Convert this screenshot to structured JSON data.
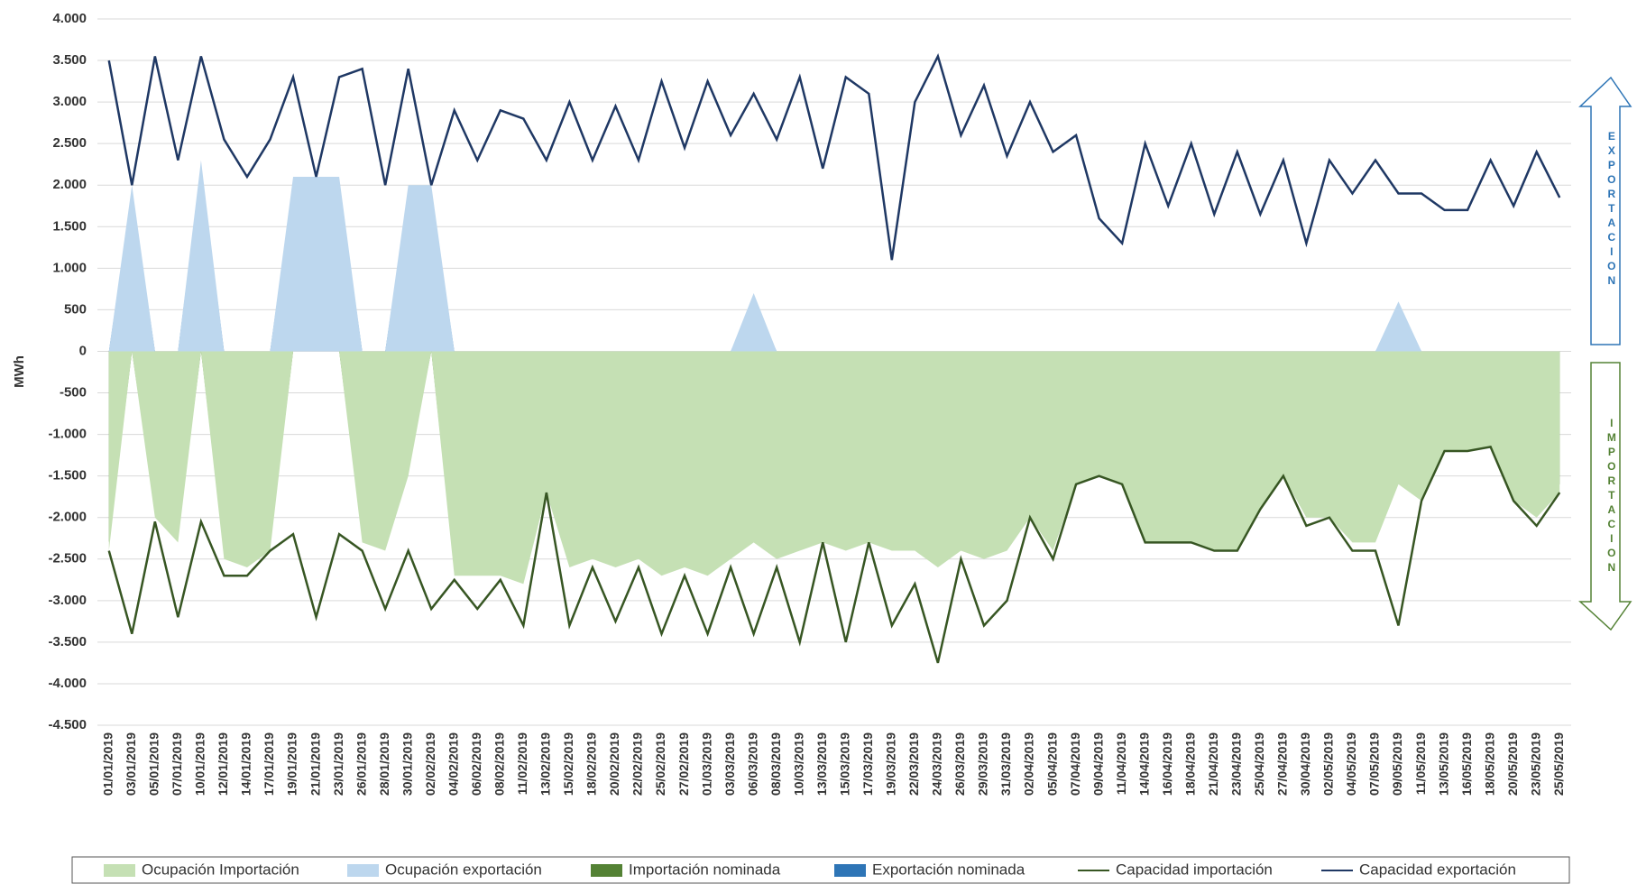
{
  "chart_data": {
    "type": "area-line",
    "y_label": "MWh",
    "annotations": [
      "EXPORTACION",
      "IMPORTACION"
    ],
    "categories": [
      "01/01/2019",
      "03/01/2019",
      "05/01/2019",
      "07/01/2019",
      "10/01/2019",
      "12/01/2019",
      "14/01/2019",
      "17/01/2019",
      "19/01/2019",
      "21/01/2019",
      "23/01/2019",
      "26/01/2019",
      "28/01/2019",
      "30/01/2019",
      "02/02/2019",
      "04/02/2019",
      "06/02/2019",
      "08/02/2019",
      "11/02/2019",
      "13/02/2019",
      "15/02/2019",
      "18/02/2019",
      "20/02/2019",
      "22/02/2019",
      "25/02/2019",
      "27/02/2019",
      "01/03/2019",
      "03/03/2019",
      "06/03/2019",
      "08/03/2019",
      "10/03/2019",
      "13/03/2019",
      "15/03/2019",
      "17/03/2019",
      "19/03/2019",
      "22/03/2019",
      "24/03/2019",
      "26/03/2019",
      "29/03/2019",
      "31/03/2019",
      "02/04/2019",
      "05/04/2019",
      "07/04/2019",
      "09/04/2019",
      "11/04/2019",
      "14/04/2019",
      "16/04/2019",
      "18/04/2019",
      "21/04/2019",
      "23/04/2019",
      "25/04/2019",
      "27/04/2019",
      "30/04/2019",
      "02/05/2019",
      "04/05/2019",
      "07/05/2019",
      "09/05/2019",
      "11/05/2019",
      "13/05/2019",
      "16/05/2019",
      "18/05/2019",
      "20/05/2019",
      "23/05/2019",
      "25/05/2019"
    ],
    "series": [
      {
        "name": "Importación nominada",
        "style": "area",
        "color": "#548235",
        "values": [
          -2300,
          0,
          -1900,
          -2200,
          0,
          -2400,
          -2500,
          -2300,
          0,
          0,
          0,
          -2200,
          -2300,
          -1400,
          0,
          -2600,
          -2600,
          -2600,
          -2700,
          -1600,
          -2500,
          -2400,
          -2500,
          -2400,
          -2600,
          -2500,
          -2600,
          -2400,
          -2200,
          -2400,
          -2300,
          -2200,
          -2300,
          -2200,
          -2300,
          -2300,
          -2500,
          -2300,
          -2400,
          -2300,
          -1900,
          -2300,
          -1500,
          -1400,
          -1500,
          -2200,
          -2200,
          -2200,
          -2300,
          -2300,
          -1800,
          -1400,
          -1900,
          -1900,
          -2200,
          -2200,
          -1500,
          -1700,
          -1100,
          -1100,
          -1100,
          -1700,
          -1900,
          -1600
        ]
      },
      {
        "name": "Exportación nominada",
        "style": "area",
        "color": "#2e75b6",
        "values": [
          0,
          1900,
          0,
          0,
          2200,
          0,
          0,
          0,
          2000,
          2000,
          2000,
          0,
          0,
          1900,
          1900,
          0,
          0,
          0,
          0,
          0,
          0,
          0,
          0,
          0,
          0,
          0,
          0,
          0,
          600,
          0,
          0,
          0,
          0,
          0,
          0,
          0,
          0,
          0,
          0,
          0,
          0,
          0,
          0,
          0,
          0,
          0,
          0,
          0,
          0,
          0,
          0,
          0,
          0,
          0,
          0,
          0,
          500,
          0,
          0,
          0,
          0,
          0,
          0,
          0
        ]
      },
      {
        "name": "Ocupación Importación",
        "style": "area",
        "color": "#c5e0b4",
        "values": [
          -2400,
          0,
          -2000,
          -2300,
          0,
          -2500,
          -2600,
          -2400,
          0,
          0,
          0,
          -2300,
          -2400,
          -1500,
          0,
          -2700,
          -2700,
          -2700,
          -2800,
          -1700,
          -2600,
          -2500,
          -2600,
          -2500,
          -2700,
          -2600,
          -2700,
          -2500,
          -2300,
          -2500,
          -2400,
          -2300,
          -2400,
          -2300,
          -2400,
          -2400,
          -2600,
          -2400,
          -2500,
          -2400,
          -2000,
          -2400,
          -1600,
          -1500,
          -1600,
          -2300,
          -2300,
          -2300,
          -2400,
          -2400,
          -1900,
          -1500,
          -2000,
          -2000,
          -2300,
          -2300,
          -1600,
          -1800,
          -1200,
          -1200,
          -1150,
          -1800,
          -2000,
          -1700
        ]
      },
      {
        "name": "Ocupación exportación",
        "style": "area",
        "color": "#bdd7ee",
        "values": [
          0,
          2000,
          0,
          0,
          2300,
          0,
          0,
          0,
          2100,
          2100,
          2100,
          0,
          0,
          2000,
          2000,
          0,
          0,
          0,
          0,
          0,
          0,
          0,
          0,
          0,
          0,
          0,
          0,
          0,
          700,
          0,
          0,
          0,
          0,
          0,
          0,
          0,
          0,
          0,
          0,
          0,
          0,
          0,
          0,
          0,
          0,
          0,
          0,
          0,
          0,
          0,
          0,
          0,
          0,
          0,
          0,
          0,
          600,
          0,
          0,
          0,
          0,
          0,
          0,
          0
        ]
      },
      {
        "name": "Capacidad importación",
        "style": "line",
        "color": "#375623",
        "values": [
          -2400,
          -3400,
          -2050,
          -3200,
          -2050,
          -2700,
          -2700,
          -2400,
          -2200,
          -3200,
          -2200,
          -2400,
          -3100,
          -2400,
          -3100,
          -2750,
          -3100,
          -2750,
          -3300,
          -1700,
          -3300,
          -2600,
          -3250,
          -2600,
          -3400,
          -2700,
          -3400,
          -2600,
          -3400,
          -2600,
          -3500,
          -2300,
          -3500,
          -2300,
          -3300,
          -2800,
          -3750,
          -2500,
          -3300,
          -3000,
          -2000,
          -2500,
          -1600,
          -1500,
          -1600,
          -2300,
          -2300,
          -2300,
          -2400,
          -2400,
          -1900,
          -1500,
          -2100,
          -2000,
          -2400,
          -2400,
          -3300,
          -1800,
          -1200,
          -1200,
          -1150,
          -1800,
          -2100,
          -1700
        ]
      },
      {
        "name": "Capacidad exportación",
        "style": "line",
        "color": "#1f3864",
        "values": [
          3500,
          2000,
          3550,
          2300,
          3550,
          2550,
          2100,
          2550,
          3300,
          2100,
          3300,
          3400,
          2000,
          3400,
          2000,
          2900,
          2300,
          2900,
          2800,
          2300,
          3000,
          2300,
          2950,
          2300,
          3250,
          2450,
          3250,
          2600,
          3100,
          2550,
          3300,
          2200,
          3300,
          3100,
          1100,
          3000,
          3550,
          2600,
          3200,
          2350,
          3000,
          2400,
          2600,
          1600,
          1300,
          2500,
          1750,
          2500,
          1650,
          2400,
          1650,
          2300,
          1300,
          2300,
          1900,
          2300,
          1900,
          1900,
          1700,
          1700,
          2300,
          1750,
          2400,
          1850
        ]
      }
    ],
    "ylim": [
      -4500,
      4000
    ],
    "yticks": [
      {
        "value": 4000,
        "label": "4.000"
      },
      {
        "value": 3500,
        "label": "3.500"
      },
      {
        "value": 3000,
        "label": "3.000"
      },
      {
        "value": 2500,
        "label": "2.500"
      },
      {
        "value": 2000,
        "label": "2.000"
      },
      {
        "value": 1500,
        "label": "1.500"
      },
      {
        "value": 1000,
        "label": "1.000"
      },
      500,
      0,
      -500,
      {
        "value": -1000,
        "label": "-1.000"
      },
      {
        "value": -1500,
        "label": "-1.500"
      },
      {
        "value": -2000,
        "label": "-2.000"
      },
      {
        "value": -2500,
        "label": "-2.500"
      },
      {
        "value": -3000,
        "label": "-3.000"
      },
      {
        "value": -3500,
        "label": "-3.500"
      },
      {
        "value": -4000,
        "label": "-4.000"
      },
      {
        "value": -4500,
        "label": "-4.500"
      }
    ],
    "grid": true,
    "legend": "bottom"
  }
}
